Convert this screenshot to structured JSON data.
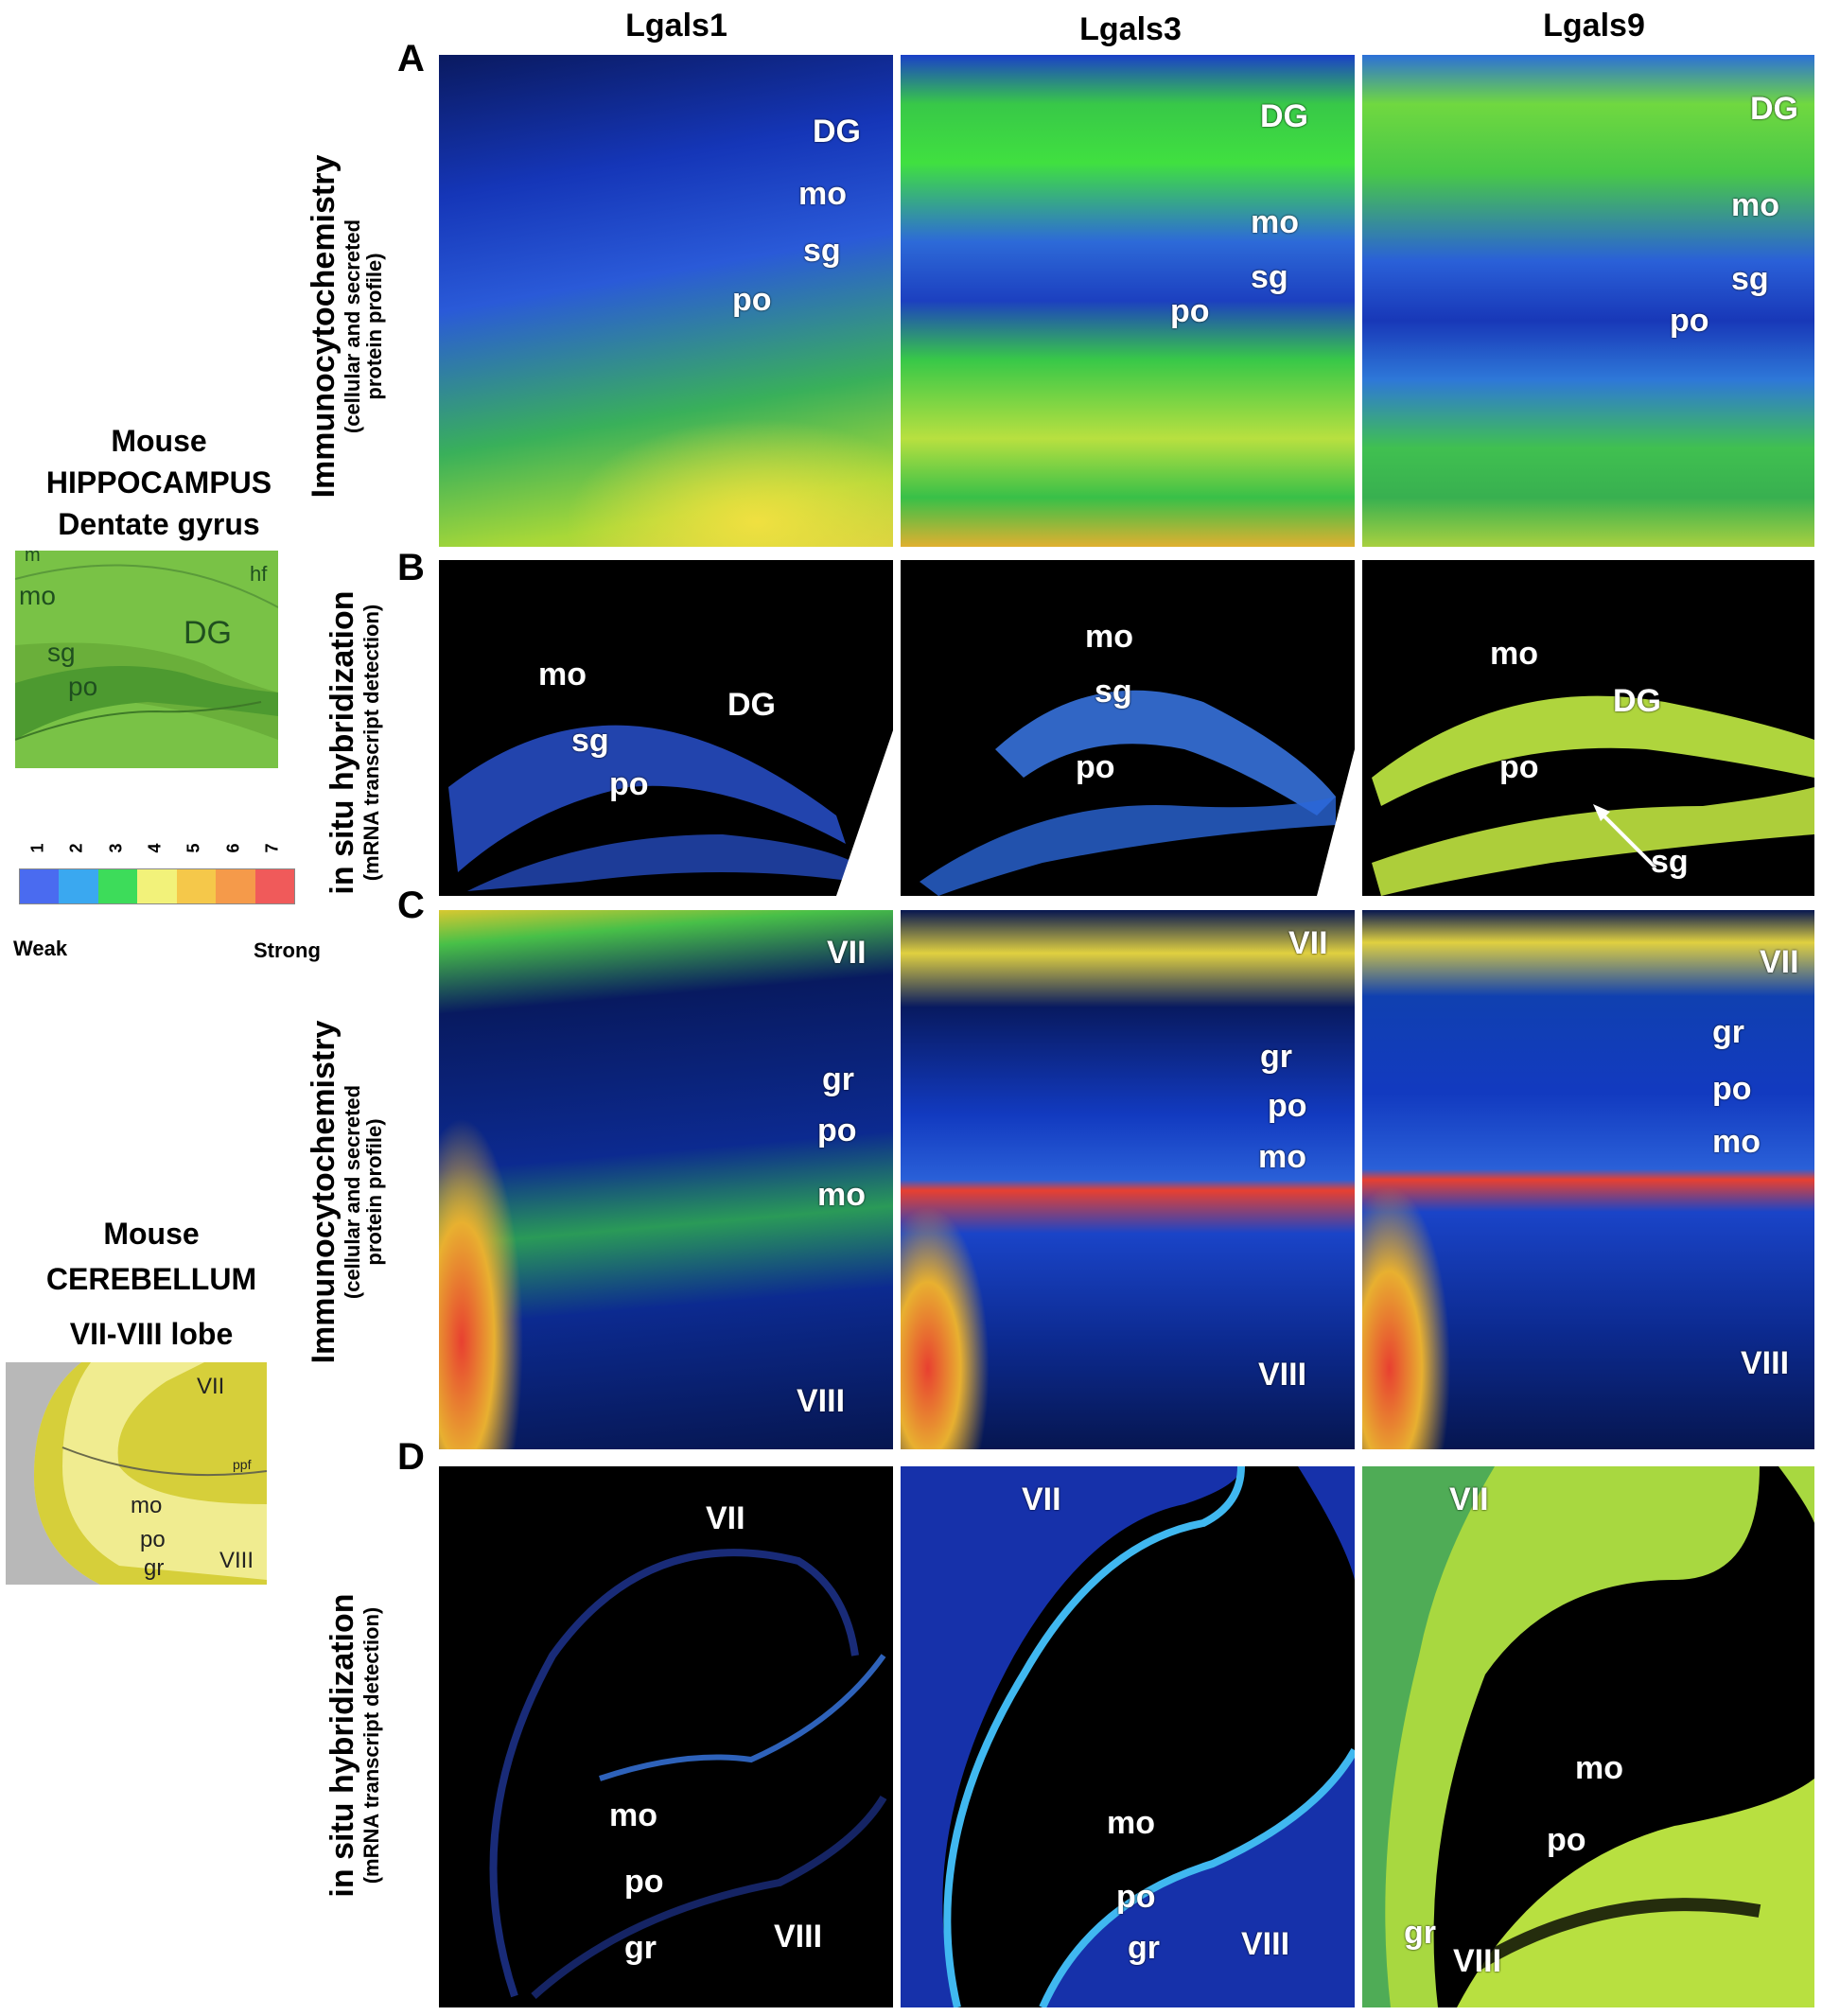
{
  "columns": [
    "Lgals1",
    "Lgals3",
    "Lgals9"
  ],
  "panel_letters": [
    "A",
    "B",
    "C",
    "D"
  ],
  "row_labels": [
    {
      "main": "Immunocytochemistry",
      "sub1": "(cellular and secreted",
      "sub2": "protein profile)"
    },
    {
      "main": "in situ hybridization",
      "sub1": "(mRNA transcript detection)",
      "sub2": ""
    },
    {
      "main": "Immunocytochemistry",
      "sub1": "(cellular and secreted",
      "sub2": "protein profile)"
    },
    {
      "main": "in situ hybridization",
      "sub1": "(mRNA transcript detection)",
      "sub2": ""
    }
  ],
  "hippocampus_legend": {
    "line1": "Mouse",
    "line2": "HIPPOCAMPUS",
    "line3": "Dentate gyrus",
    "labels": [
      "mo",
      "DG",
      "sg",
      "po",
      "hf",
      "m"
    ]
  },
  "scale": {
    "numbers": [
      "1",
      "2",
      "3",
      "4",
      "5",
      "6",
      "7"
    ],
    "colors": [
      "#4a6bf0",
      "#3aa8f0",
      "#3ddc5a",
      "#f2f27a",
      "#f5c84a",
      "#f59a4a",
      "#f05a5a"
    ],
    "weak": "Weak",
    "strong": "Strong"
  },
  "cerebellum_legend": {
    "line1": "Mouse",
    "line2": "CEREBELLUM",
    "line3": "VII-VIII lobe",
    "labels": [
      "VII",
      "ppf",
      "mo",
      "po",
      "gr",
      "VIII"
    ]
  },
  "panels": {
    "A1": [
      "DG",
      "mo",
      "sg",
      "po"
    ],
    "A2": [
      "DG",
      "mo",
      "sg",
      "po"
    ],
    "A3": [
      "DG",
      "mo",
      "sg",
      "po"
    ],
    "B1": [
      "mo",
      "DG",
      "sg",
      "po"
    ],
    "B2": [
      "mo",
      "sg",
      "po"
    ],
    "B3": [
      "mo",
      "DG",
      "po",
      "sg"
    ],
    "C1": [
      "VII",
      "gr",
      "po",
      "mo",
      "VIII"
    ],
    "C2": [
      "VII",
      "gr",
      "po",
      "mo",
      "VIII"
    ],
    "C3": [
      "VII",
      "gr",
      "po",
      "mo",
      "VIII"
    ],
    "D1": [
      "VII",
      "mo",
      "po",
      "gr",
      "VIII"
    ],
    "D2": [
      "VII",
      "mo",
      "po",
      "gr",
      "VIII"
    ],
    "D3": [
      "VII",
      "mo",
      "po",
      "gr",
      "VIII"
    ]
  }
}
